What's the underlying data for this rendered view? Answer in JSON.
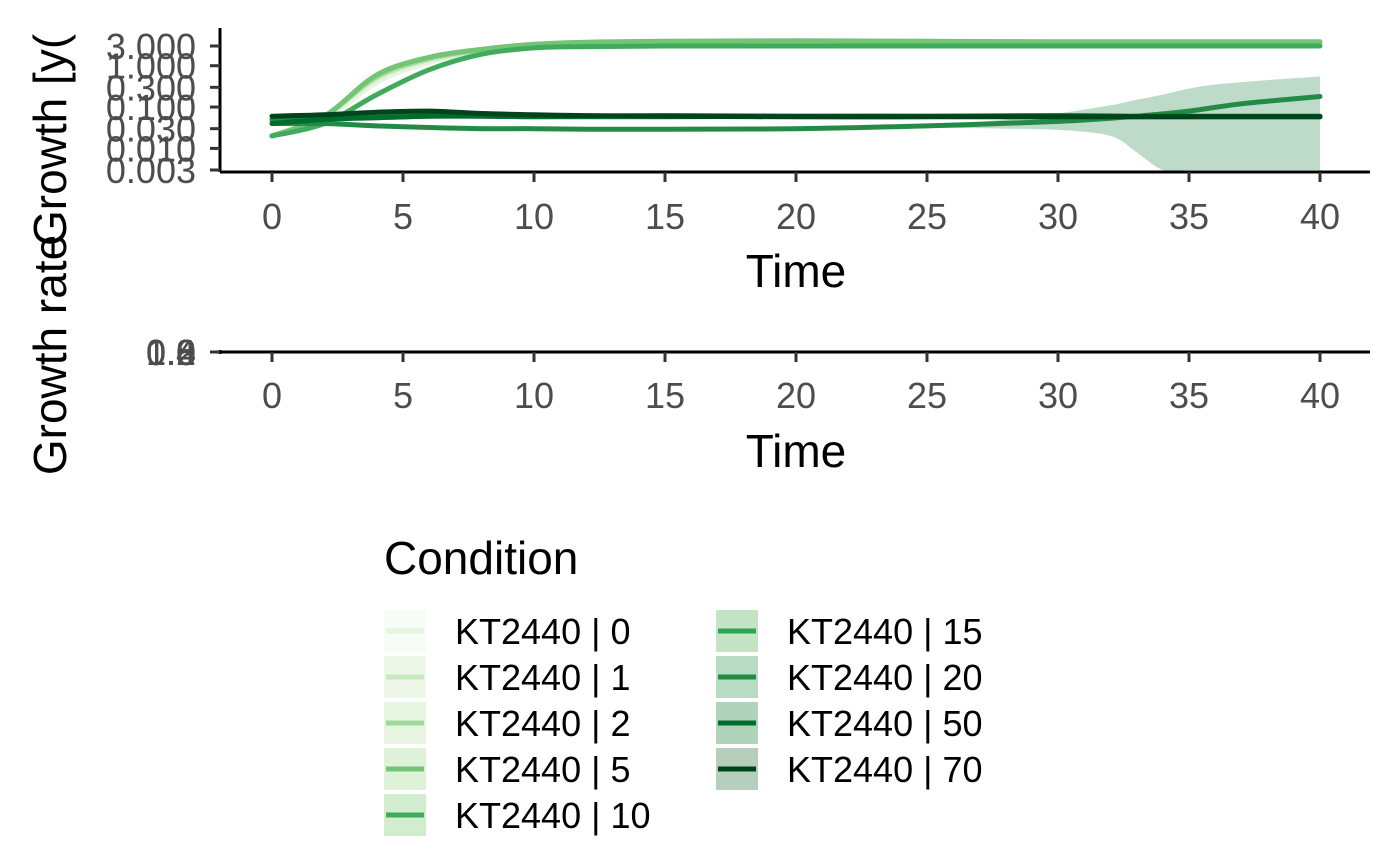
{
  "chart_data": [
    {
      "type": "line",
      "panel": "top",
      "ylabel": "Growth [y(",
      "xlabel": "Time",
      "y_scale": "log",
      "xlim": [
        0,
        40
      ],
      "ylim": [
        0.003,
        3.0
      ],
      "x_ticks": [
        "0",
        "5",
        "10",
        "15",
        "20",
        "25",
        "30",
        "35",
        "40"
      ],
      "y_ticks": [
        "0.003",
        "0.010",
        "0.030",
        "0.100",
        "0.300",
        "1.000",
        "3.000"
      ],
      "x": [
        0,
        2,
        4,
        6,
        8,
        10,
        12,
        15,
        20,
        25,
        30,
        33,
        35,
        37,
        40
      ],
      "series": [
        {
          "name": "KT2440 | 0",
          "color": "#e5f5e0",
          "fill": "#f7fcf5",
          "values": [
            0.02,
            0.05,
            0.4,
            1.2,
            2.2,
            3.0,
            3.4,
            3.5,
            3.5,
            3.5,
            3.5,
            3.5,
            3.5,
            3.5,
            3.5
          ]
        },
        {
          "name": "KT2440 | 1",
          "color": "#c7e9c0",
          "fill": "#edf8e9",
          "values": [
            0.02,
            0.06,
            0.5,
            1.4,
            2.3,
            3.1,
            3.4,
            3.6,
            3.6,
            3.6,
            3.5,
            3.5,
            3.5,
            3.5,
            3.5
          ]
        },
        {
          "name": "KT2440 | 2",
          "color": "#a1d99b",
          "fill": "#e5f5e0",
          "values": [
            0.02,
            0.06,
            0.55,
            1.5,
            2.4,
            3.2,
            3.5,
            3.7,
            3.8,
            3.7,
            3.6,
            3.6,
            3.6,
            3.6,
            3.6
          ]
        },
        {
          "name": "KT2440 | 5",
          "color": "#74c476",
          "fill": "#e5f5e0",
          "values": [
            0.02,
            0.06,
            0.6,
            1.6,
            2.5,
            3.3,
            3.7,
            3.9,
            4.0,
            3.9,
            3.8,
            3.8,
            3.8,
            3.8,
            3.8
          ]
        },
        {
          "name": "KT2440 | 10",
          "color": "#41ab5d",
          "fill": "#c7e9c0",
          "values": [
            0.02,
            0.04,
            0.2,
            0.8,
            1.9,
            2.7,
            2.9,
            3.0,
            3.0,
            3.0,
            3.0,
            3.0,
            3.0,
            3.0,
            3.0
          ]
        },
        {
          "name": "KT2440 | 15",
          "color": "#238b45",
          "fill": "#a1d99b",
          "values": [
            0.04,
            0.04,
            0.035,
            0.032,
            0.03,
            0.03,
            0.029,
            0.029,
            0.03,
            0.035,
            0.045,
            0.06,
            0.08,
            0.12,
            0.18
          ]
        },
        {
          "name": "KT2440 | 20",
          "color": "#238b45",
          "fill": "#a1d99b",
          "values": [
            0.05,
            0.055,
            0.06,
            0.065,
            0.065,
            0.06,
            0.058,
            0.058,
            0.06,
            0.06,
            0.058,
            0.058,
            0.058,
            0.058,
            0.058
          ]
        },
        {
          "name": "KT2440 | 50",
          "color": "#006d2c",
          "fill": "#74c476",
          "values": [
            0.04,
            0.05,
            0.055,
            0.06,
            0.06,
            0.058,
            0.06,
            0.062,
            0.06,
            0.06,
            0.062,
            0.06,
            0.06,
            0.06,
            0.06
          ]
        },
        {
          "name": "KT2440 | 70",
          "color": "#00441b",
          "fill": "#41ab5d",
          "values": [
            0.06,
            0.065,
            0.075,
            0.08,
            0.07,
            0.065,
            0.062,
            0.06,
            0.058,
            0.058,
            0.058,
            0.058,
            0.058,
            0.058,
            0.058
          ]
        }
      ],
      "ribbon": {
        "series": "KT2440 | 15",
        "color": "#bad9c6",
        "x": [
          25,
          28,
          30,
          32,
          33,
          34,
          35,
          36,
          38,
          40
        ],
        "upper": [
          0.035,
          0.05,
          0.07,
          0.11,
          0.15,
          0.2,
          0.28,
          0.35,
          0.45,
          0.55
        ],
        "lower": [
          0.032,
          0.03,
          0.028,
          0.02,
          0.008,
          0.003,
          0.003,
          0.003,
          0.003,
          0.003
        ]
      }
    },
    {
      "type": "line",
      "panel": "bottom",
      "ylabel": "Growth rate",
      "xlabel": "Time",
      "xlim": [
        0,
        40
      ],
      "x_ticks": [
        "0",
        "5",
        "10",
        "15",
        "20",
        "25",
        "30",
        "35",
        "40"
      ],
      "y_ticks": [
        "1.6",
        "1.2",
        "0.8",
        "0.4",
        "0.0"
      ]
    }
  ],
  "legend": {
    "title": "Condition",
    "items": [
      {
        "label": "KT2440 | 0",
        "color": "#e5f5e0",
        "fill": "#f7fcf5"
      },
      {
        "label": "KT2440 | 1",
        "color": "#c7e9c0",
        "fill": "#edf8e9"
      },
      {
        "label": "KT2440 | 2",
        "color": "#a1d99b",
        "fill": "#e5f5e0"
      },
      {
        "label": "KT2440 | 5",
        "color": "#74c476",
        "fill": "#ddf2d6"
      },
      {
        "label": "KT2440 | 10",
        "color": "#41ab5d",
        "fill": "#d2ecd0"
      },
      {
        "label": "KT2440 | 15",
        "color": "#31a354",
        "fill": "#c3e5c5"
      },
      {
        "label": "KT2440 | 20",
        "color": "#238b45",
        "fill": "#b8dcc3"
      },
      {
        "label": "KT2440 | 50",
        "color": "#006d2c",
        "fill": "#b0d4bb"
      },
      {
        "label": "KT2440 | 70",
        "color": "#00441b",
        "fill": "#b6cfbc"
      }
    ]
  }
}
